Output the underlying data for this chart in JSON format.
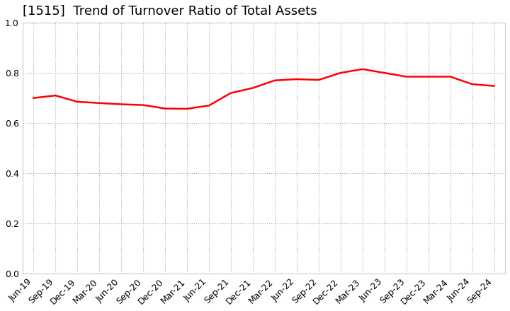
{
  "title": "[1515]  Trend of Turnover Ratio of Total Assets",
  "x_labels": [
    "Jun-19",
    "Sep-19",
    "Dec-19",
    "Mar-20",
    "Jun-20",
    "Sep-20",
    "Dec-20",
    "Mar-21",
    "Jun-21",
    "Sep-21",
    "Dec-21",
    "Mar-22",
    "Jun-22",
    "Sep-22",
    "Dec-22",
    "Mar-23",
    "Jun-23",
    "Sep-23",
    "Dec-23",
    "Mar-24",
    "Jun-24",
    "Sep-24"
  ],
  "values": [
    0.7,
    0.71,
    0.685,
    0.68,
    0.675,
    0.672,
    0.658,
    0.657,
    0.67,
    0.72,
    0.74,
    0.77,
    0.775,
    0.772,
    0.8,
    0.815,
    0.8,
    0.785,
    0.785,
    0.785,
    0.755,
    0.748
  ],
  "line_color": "#FF0000",
  "line_width": 1.8,
  "ylim": [
    0.0,
    1.0
  ],
  "yticks": [
    0.0,
    0.2,
    0.4,
    0.6,
    0.8,
    1.0
  ],
  "grid_color": "#aaaaaa",
  "grid_style": "dotted",
  "background_color": "#ffffff",
  "title_fontsize": 13,
  "tick_fontsize": 9
}
